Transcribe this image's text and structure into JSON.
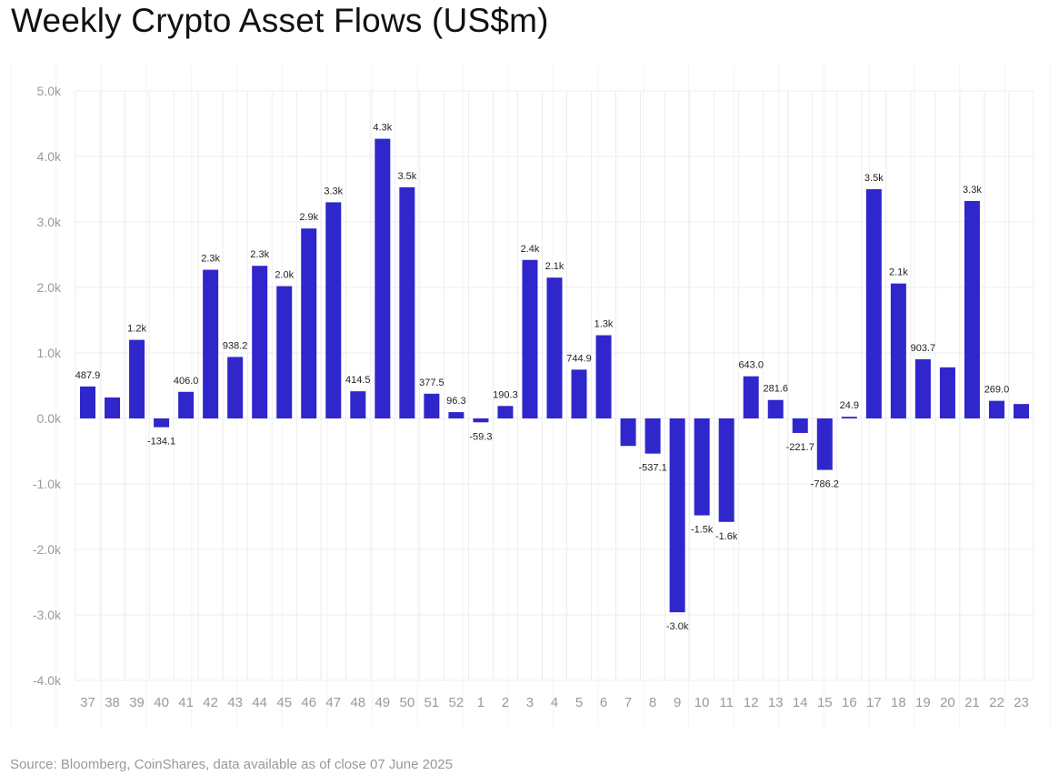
{
  "title": "Weekly Crypto Asset Flows (US$m)",
  "source": "Source: Bloomberg, CoinShares, data available as of close 07 June 2025",
  "colors": {
    "bar": "#2f26cc",
    "grid": "#ececec",
    "background_grid": "#f4f4f4",
    "axis_text": "#9a9a9a",
    "label_text": "#222222"
  },
  "chart_data": {
    "type": "bar",
    "title": "Weekly Crypto Asset Flows (US$m)",
    "xlabel": "",
    "ylabel": "",
    "ylim": [
      -4000,
      5000
    ],
    "yticks": [
      5000,
      4000,
      3000,
      2000,
      1000,
      0,
      -1000,
      -2000,
      -3000,
      -4000
    ],
    "ytick_labels": [
      "5.0k",
      "4.0k",
      "3.0k",
      "2.0k",
      "1.0k",
      "0.0k",
      "-1.0k",
      "-2.0k",
      "-3.0k",
      "-4.0k"
    ],
    "grid": true,
    "legend": "none",
    "categories": [
      "37",
      "38",
      "39",
      "40",
      "41",
      "42",
      "43",
      "44",
      "45",
      "46",
      "47",
      "48",
      "49",
      "50",
      "51",
      "52",
      "1",
      "2",
      "3",
      "4",
      "5",
      "6",
      "7",
      "8",
      "9",
      "10",
      "11",
      "12",
      "13",
      "14",
      "15",
      "16",
      "17",
      "18",
      "19",
      "20",
      "21",
      "22",
      "23"
    ],
    "values": [
      487.9,
      320,
      1200,
      -134.1,
      406.0,
      2270,
      938.2,
      2330,
      2020,
      2900,
      3300,
      414.5,
      4270,
      3530,
      377.5,
      96.3,
      -59.3,
      190.3,
      2420,
      2150,
      744.9,
      1270,
      -420,
      -537.1,
      -2960,
      -1480,
      -1580,
      643.0,
      281.6,
      -221.7,
      -786.2,
      24.9,
      3500,
      2060,
      903.7,
      780,
      3320,
      269.0,
      220
    ],
    "data_labels": [
      "487.9",
      "",
      "1.2k",
      "-134.1",
      "406.0",
      "2.3k",
      "938.2",
      "2.3k",
      "2.0k",
      "2.9k",
      "3.3k",
      "414.5",
      "4.3k",
      "3.5k",
      "377.5",
      "96.3",
      "-59.3",
      "190.3",
      "2.4k",
      "2.1k",
      "744.9",
      "1.3k",
      "",
      "-537.1",
      "-3.0k",
      "-1.5k",
      "-1.6k",
      "643.0",
      "281.6",
      "-221.7",
      "-786.2",
      "24.9",
      "3.5k",
      "2.1k",
      "903.7",
      "",
      "3.3k",
      "269.0",
      ""
    ]
  }
}
